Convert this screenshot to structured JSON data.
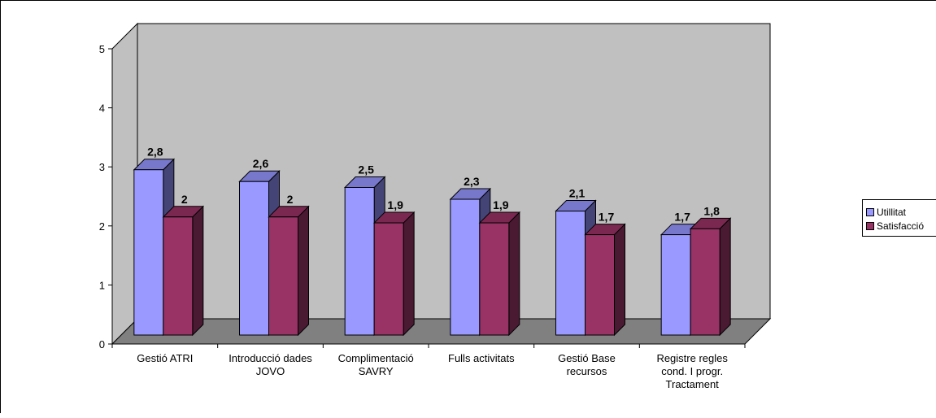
{
  "chart_data": {
    "type": "bar",
    "categories": [
      [
        "Gestió ATRI"
      ],
      [
        "Introducció dades",
        "JOVO"
      ],
      [
        "Complimentació",
        "SAVRY"
      ],
      [
        "Fulls activitats"
      ],
      [
        "Gestió Base",
        "recursos"
      ],
      [
        "Registre regles",
        "cond. I progr.",
        "Tractament"
      ]
    ],
    "series": [
      {
        "name": "Utilitat",
        "values": [
          2.8,
          2.6,
          2.5,
          2.3,
          2.1,
          1.7
        ],
        "labels": [
          "2,8",
          "2,6",
          "2,5",
          "2,3",
          "2,1",
          "1,7"
        ],
        "front": "#9999ff",
        "top": "#7777cc",
        "side": "#444477"
      },
      {
        "name": "Satisfacció",
        "values": [
          2,
          2,
          1.9,
          1.9,
          1.7,
          1.8
        ],
        "labels": [
          "2",
          "2",
          "1,9",
          "1,9",
          "1,7",
          "1,8"
        ],
        "front": "#993366",
        "top": "#7a2850",
        "side": "#4a1a33"
      }
    ],
    "yticks": [
      "0",
      "1",
      "2",
      "3",
      "4",
      "5"
    ],
    "ylim": [
      0,
      5
    ],
    "title": "",
    "xlabel": "",
    "ylabel": "",
    "grid": false,
    "legend_position": "right",
    "wall_color": "#c0c0c0",
    "floor_color": "#808080"
  },
  "legend": {
    "item1": "Utillitat",
    "item2": "Satisfacció"
  }
}
